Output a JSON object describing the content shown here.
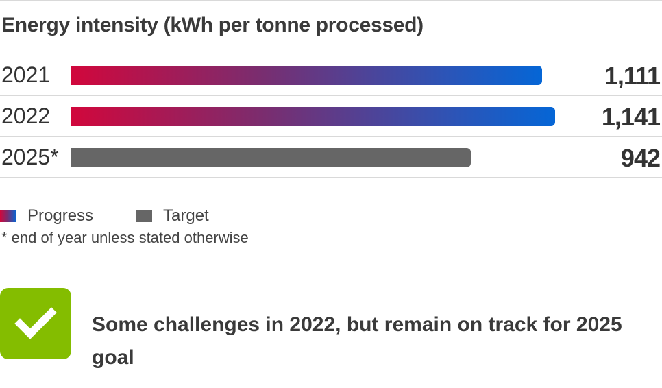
{
  "title": "Energy intensity (kWh per tonne processed)",
  "chart_data": {
    "type": "bar",
    "orientation": "horizontal",
    "title": "Energy intensity (kWh per tonne processed)",
    "categories": [
      "2021",
      "2022",
      "2025*"
    ],
    "series": [
      {
        "name": "Progress",
        "values": [
          1111,
          1141,
          null
        ]
      },
      {
        "name": "Target",
        "values": [
          null,
          null,
          942
        ]
      }
    ],
    "value_labels": [
      "1,111",
      "1,141",
      "942"
    ],
    "xlim": [
      0,
      1141
    ],
    "grid": false,
    "legend_position": "bottom-left",
    "legend": [
      "Progress",
      "Target"
    ],
    "colors": {
      "progress_start": "#d1073c",
      "progress_end": "#0566d6",
      "target": "#666666"
    }
  },
  "footnote": "* end of year unless stated otherwise",
  "status": {
    "icon": "checkmark-icon",
    "color": "#84bd00",
    "text": "Some challenges in 2022, but remain on track for 2025 goal"
  }
}
